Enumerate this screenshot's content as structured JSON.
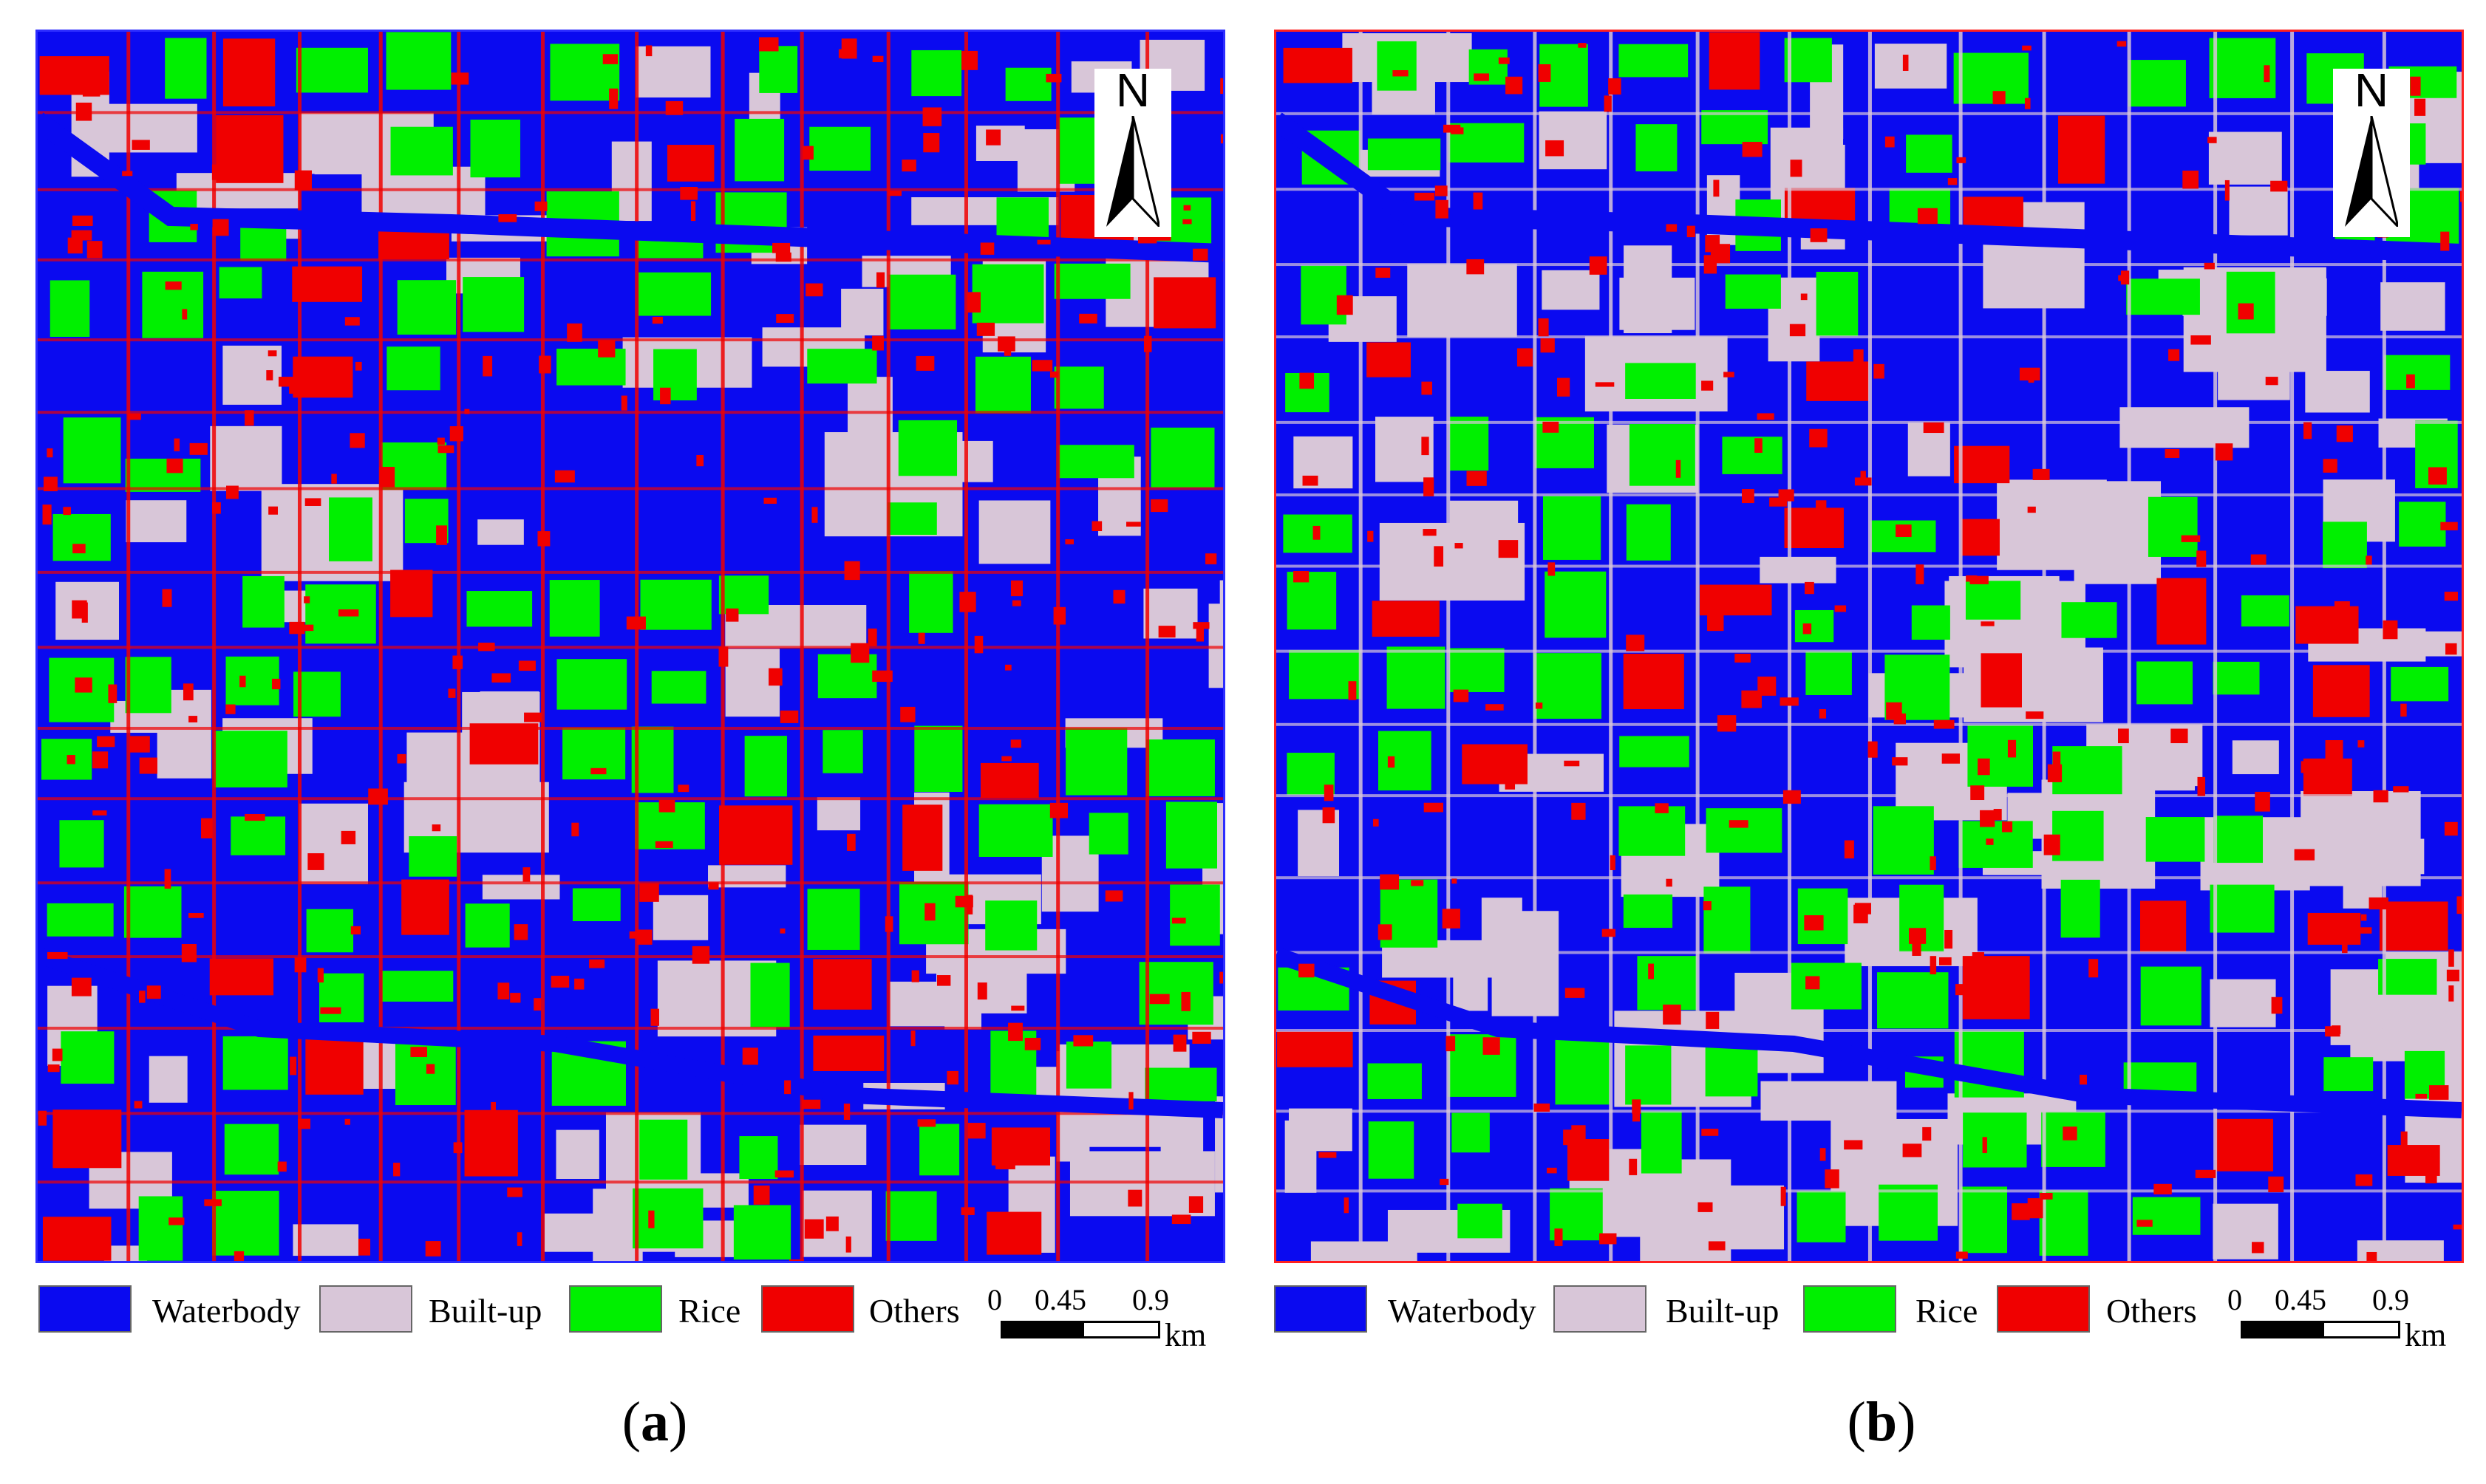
{
  "panels": [
    {
      "id": "a",
      "caption_letter": "a",
      "north_label": "N",
      "legend": [
        {
          "label": "Waterbody",
          "color": "#0a0af0"
        },
        {
          "label": "Built-up",
          "color": "#d8c6d8"
        },
        {
          "label": "Rice",
          "color": "#00f000"
        },
        {
          "label": "Others",
          "color": "#f00000"
        }
      ],
      "scale": {
        "ticks": [
          "0",
          "0.45",
          "0.9"
        ],
        "unit": "km"
      }
    },
    {
      "id": "b",
      "caption_letter": "b",
      "north_label": "N",
      "legend": [
        {
          "label": "Waterbody",
          "color": "#0a0af0"
        },
        {
          "label": "Built-up",
          "color": "#d8c6d8"
        },
        {
          "label": "Rice",
          "color": "#00f000"
        },
        {
          "label": "Others",
          "color": "#f00000"
        }
      ],
      "scale": {
        "ticks": [
          "0",
          "0.45",
          "0.9"
        ],
        "unit": "km"
      }
    }
  ],
  "colors": {
    "waterbody": "#0a0af0",
    "built_up": "#d8c6d8",
    "rice": "#00f000",
    "others": "#f00000"
  }
}
